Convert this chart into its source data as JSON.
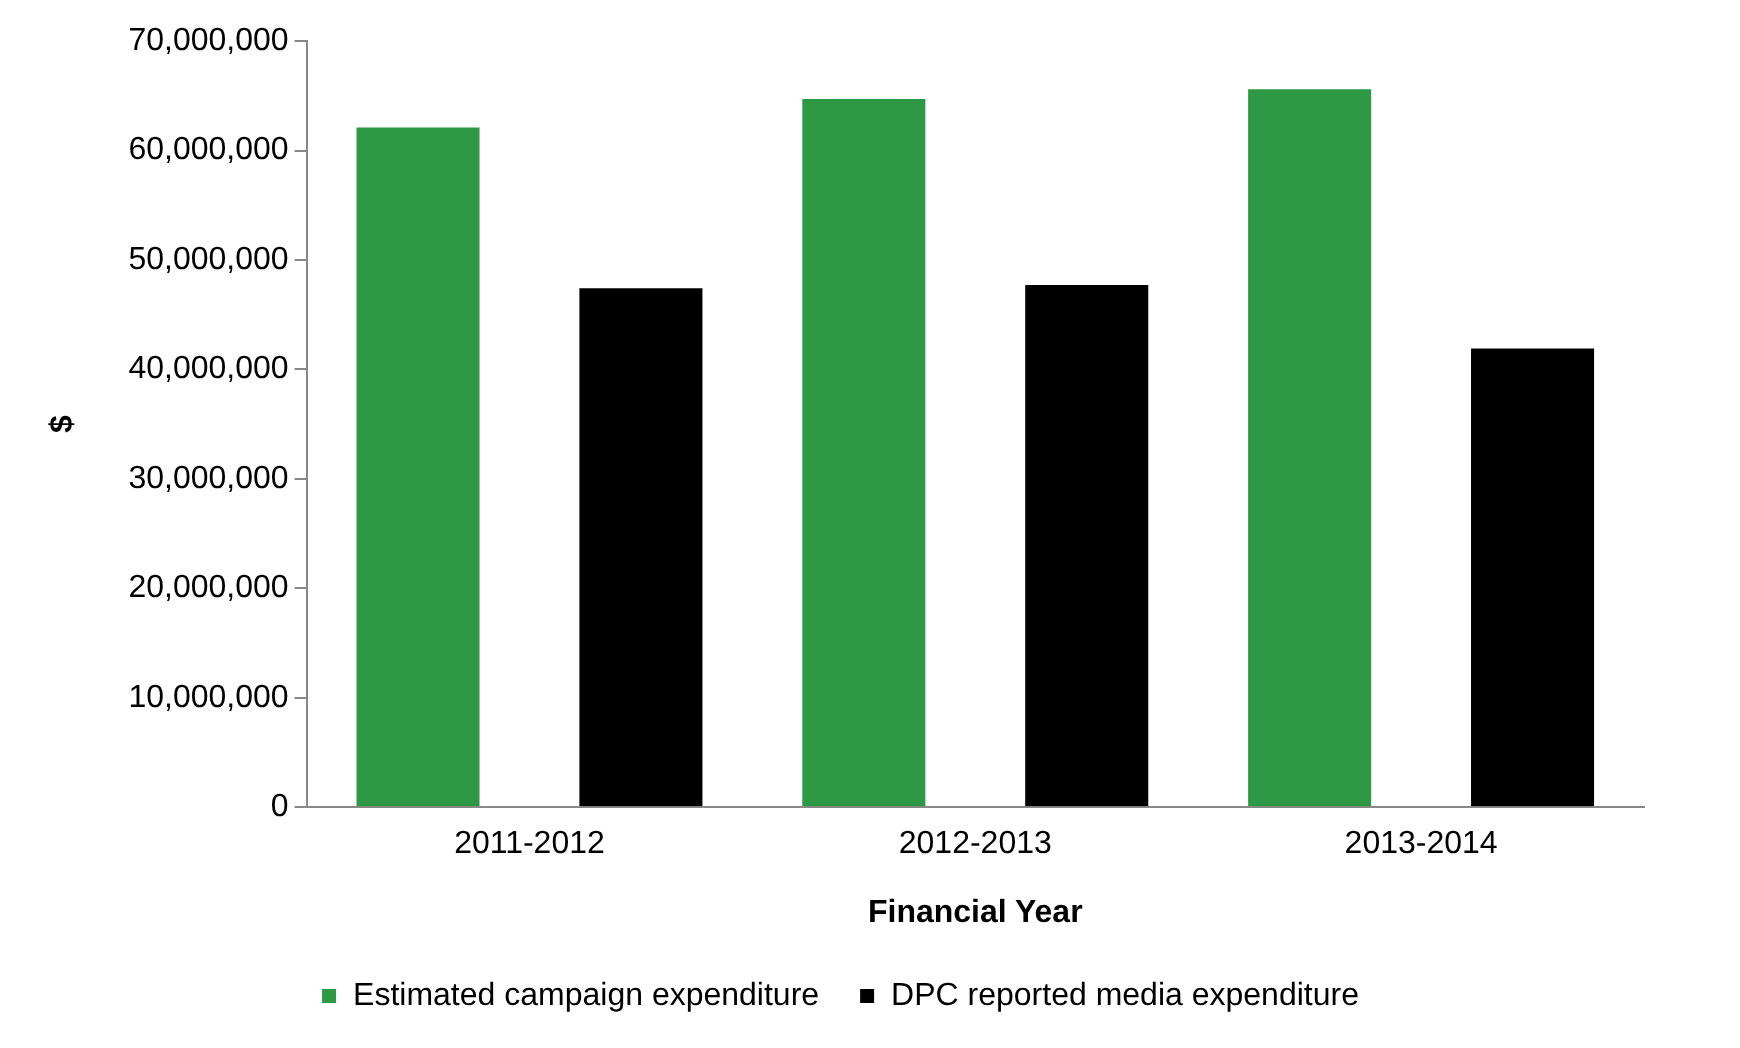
{
  "chart_data": {
    "type": "bar",
    "xlabel": "Financial Year",
    "ylabel": "$",
    "categories": [
      "2011-2012",
      "2012-2013",
      "2013-2014"
    ],
    "series": [
      {
        "name": "Estimated campaign expenditure",
        "color": "#2e9944",
        "values": [
          62300000,
          64900000,
          65800000
        ]
      },
      {
        "name": "DPC reported media expenditure",
        "color": "#000000",
        "values": [
          47600000,
          47900000,
          42100000
        ]
      }
    ],
    "ylim": [
      0,
      70000000
    ],
    "yticks": [
      {
        "value": 0,
        "label": "0"
      },
      {
        "value": 10000000,
        "label": "10,000,000"
      },
      {
        "value": 20000000,
        "label": "20,000,000"
      },
      {
        "value": 30000000,
        "label": "30,000,000"
      },
      {
        "value": 40000000,
        "label": "40,000,000"
      },
      {
        "value": 50000000,
        "label": "50,000,000"
      },
      {
        "value": 60000000,
        "label": "60,000,000"
      },
      {
        "value": 70000000,
        "label": "70,000,000"
      }
    ],
    "grid": false,
    "legend": "bottom"
  }
}
